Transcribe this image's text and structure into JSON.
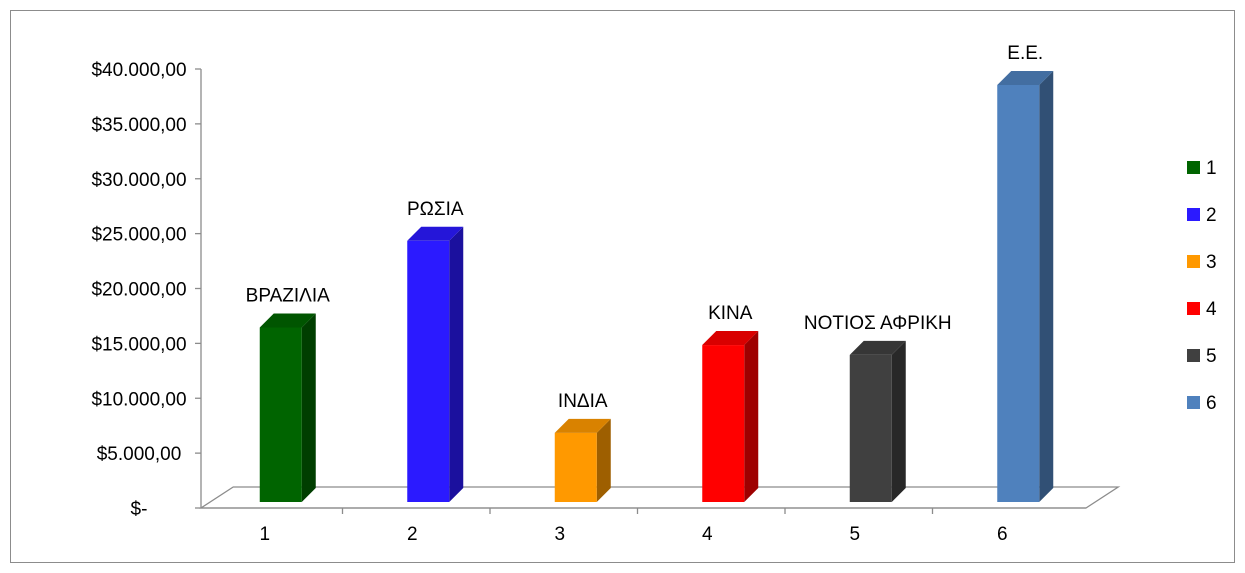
{
  "chart_data": {
    "type": "bar",
    "categories": [
      "1",
      "2",
      "3",
      "4",
      "5",
      "6"
    ],
    "values": [
      15900,
      23800,
      6300,
      14300,
      13400,
      38000
    ],
    "data_labels": [
      "ΒΡΑΖΙΛΙΑ",
      "ΡΩΣΙΑ",
      "ΙΝΔΙΑ",
      "ΚΙΝΑ",
      "ΝΟΤΙΟΣ ΑΦΡΙΚΗ",
      "Ε.Ε."
    ],
    "colors": [
      "#006400",
      "#2b1aff",
      "#ff9900",
      "#ff0000",
      "#404040",
      "#4f81bd"
    ],
    "ylim": [
      0,
      40000
    ],
    "yticks": [
      0,
      5000,
      10000,
      15000,
      20000,
      25000,
      30000,
      35000,
      40000
    ],
    "ytick_labels": [
      "$-",
      "$5.000,00",
      "$10.000,00",
      "$15.000,00",
      "$20.000,00",
      "$25.000,00",
      "$30.000,00",
      "$35.000,00",
      "$40.000,00"
    ],
    "legend": {
      "position": "right",
      "entries": [
        "1",
        "2",
        "3",
        "4",
        "5",
        "6"
      ]
    },
    "style": "3d-column",
    "grid": false
  }
}
